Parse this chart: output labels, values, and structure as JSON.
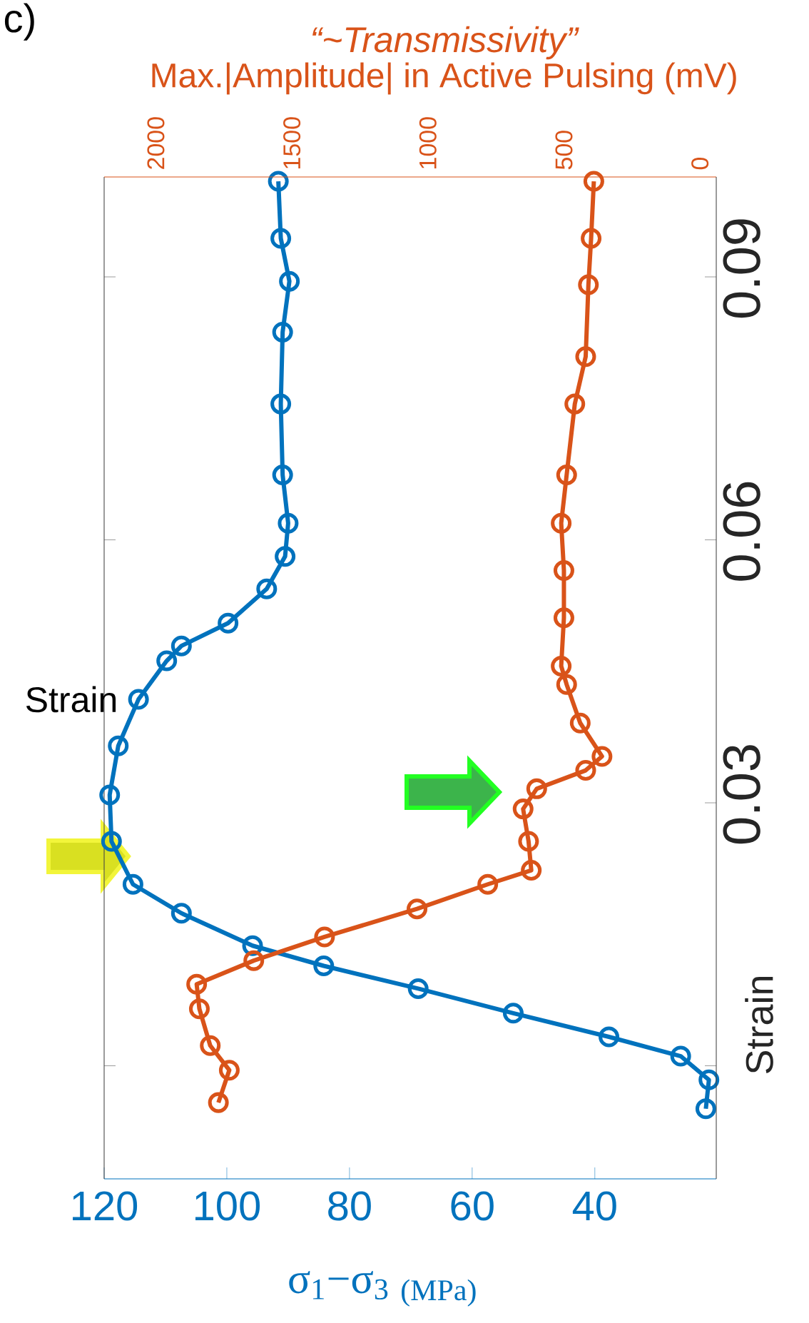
{
  "chart_data": {
    "type": "line",
    "title": "“~Transmissivity”",
    "x2label": "Max.|Amplitude| in Active Pulsing (mV)",
    "xlabel": "σ$_{1}$−σ$_{3}$ $_{(MPa)}$",
    "ylabel": "Strain",
    "annotations": [
      "c)",
      "Strain"
    ],
    "xlim": [
      120,
      20.2
    ],
    "xticks": [
      120,
      100,
      80,
      60,
      40
    ],
    "x2lim": [
      2190,
      -60
    ],
    "x2ticks": [
      2000,
      1500,
      1000,
      500,
      0
    ],
    "ylim": [
      -0.0129,
      0.1014
    ],
    "yticks": [
      {
        "value": 0,
        "label": null
      },
      0.03,
      0.06,
      0.09
    ],
    "marker": "circle",
    "line_style": "solid",
    "series": [
      {
        "color": "#0072bd",
        "x": [
          91.6,
          91.2,
          89.8,
          90.9,
          91.2,
          90.9,
          90.0,
          90.5,
          93.5,
          99.8,
          107.4,
          109.8,
          114.4,
          117.7,
          119.1,
          118.8,
          115.3,
          107.4,
          95.8,
          84.2,
          68.8,
          53.3,
          37.7,
          26.0,
          21.4,
          21.9
        ],
        "values": [
          0.1009,
          0.0944,
          0.0895,
          0.0837,
          0.0755,
          0.0674,
          0.0619,
          0.0581,
          0.0544,
          0.0505,
          0.0479,
          0.0462,
          0.0418,
          0.0365,
          0.0309,
          0.0256,
          0.0207,
          0.0174,
          0.0137,
          0.0114,
          0.0088,
          0.006,
          0.0033,
          0.0011,
          -0.0016,
          -0.0049
        ]
      },
      {
        "color": "#d95319",
        "axis": "x2",
        "x": [
          390,
          400,
          410,
          420,
          460,
          490,
          510,
          500,
          500,
          510,
          490,
          440,
          360,
          420,
          600,
          650,
          630,
          620,
          780,
          1040,
          1380,
          1640,
          1850,
          1840,
          1800,
          1730,
          1770
        ],
        "values": [
          0.1009,
          0.0944,
          0.0891,
          0.0809,
          0.0755,
          0.0674,
          0.0619,
          0.0565,
          0.0511,
          0.0456,
          0.0435,
          0.0391,
          0.0353,
          0.0337,
          0.0316,
          0.0293,
          0.0256,
          0.0223,
          0.0207,
          0.0179,
          0.0147,
          0.012,
          0.0093,
          0.0065,
          0.0023,
          -0.0005,
          -0.0042
        ]
      }
    ]
  }
}
